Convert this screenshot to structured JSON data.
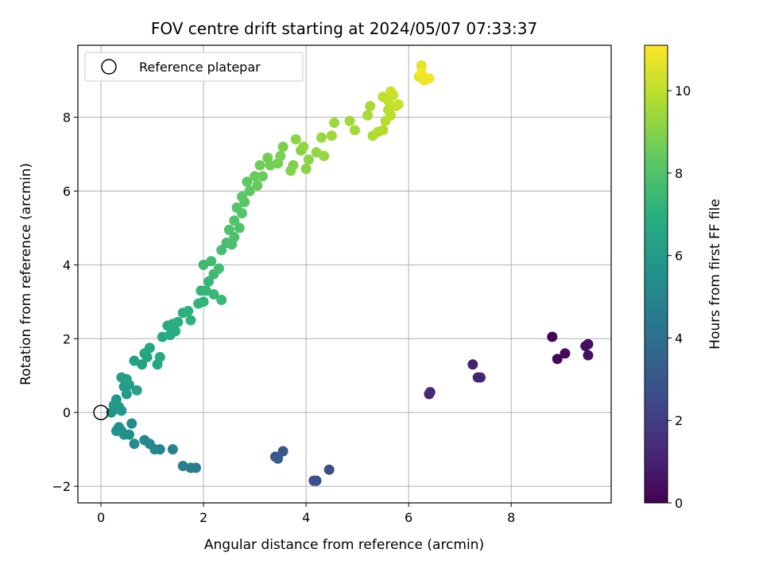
{
  "chart_data": {
    "type": "scatter",
    "title": "FOV centre drift starting at 2024/05/07 07:33:37",
    "xlabel": "Angular distance from reference (arcmin)",
    "ylabel": "Rotation from reference (arcmin)",
    "xlim": [
      -0.45,
      9.95
    ],
    "ylim": [
      -2.45,
      9.95
    ],
    "xticks": [
      0,
      2,
      4,
      6,
      8
    ],
    "yticks": [
      -2,
      0,
      2,
      4,
      6,
      8
    ],
    "xtick_labels": [
      "0",
      "2",
      "4",
      "6",
      "8"
    ],
    "ytick_labels": [
      "−2",
      "0",
      "2",
      "4",
      "6",
      "8"
    ],
    "grid": true,
    "legend": {
      "placement": "top-left",
      "label": "Reference platepar"
    },
    "reference_point": {
      "x": 0,
      "y": 0
    },
    "colorbar": {
      "label": "Hours from first FF file",
      "range": [
        0,
        11.1
      ],
      "ticks": [
        0,
        2,
        4,
        6,
        8,
        10
      ],
      "tick_labels": [
        "0",
        "2",
        "4",
        "6",
        "8",
        "10"
      ],
      "colormap": "viridis"
    },
    "points": [
      [
        8.8,
        2.05,
        0.1
      ],
      [
        8.9,
        1.45,
        0.2
      ],
      [
        9.05,
        1.6,
        0.3
      ],
      [
        9.45,
        1.8,
        0.4
      ],
      [
        9.5,
        1.85,
        0.45
      ],
      [
        9.5,
        1.55,
        0.5
      ],
      [
        7.25,
        1.3,
        1.0
      ],
      [
        7.35,
        0.95,
        1.05
      ],
      [
        7.4,
        0.95,
        1.1
      ],
      [
        6.4,
        0.5,
        1.2
      ],
      [
        6.42,
        0.55,
        1.25
      ],
      [
        4.45,
        -1.55,
        2.6
      ],
      [
        4.2,
        -1.85,
        2.7
      ],
      [
        4.15,
        -1.85,
        2.75
      ],
      [
        3.55,
        -1.05,
        3.0
      ],
      [
        3.4,
        -1.2,
        3.1
      ],
      [
        3.45,
        -1.25,
        3.15
      ],
      [
        1.85,
        -1.5,
        4.5
      ],
      [
        1.75,
        -1.5,
        4.6
      ],
      [
        1.6,
        -1.45,
        4.7
      ],
      [
        1.4,
        -1.0,
        4.9
      ],
      [
        1.15,
        -1.0,
        5.0
      ],
      [
        1.05,
        -1.0,
        5.05
      ],
      [
        0.95,
        -0.85,
        5.15
      ],
      [
        0.85,
        -0.75,
        5.2
      ],
      [
        0.65,
        -0.85,
        5.35
      ],
      [
        0.6,
        -0.3,
        5.4
      ],
      [
        0.55,
        -0.6,
        5.45
      ],
      [
        0.45,
        -0.6,
        5.5
      ],
      [
        0.4,
        -0.5,
        5.55
      ],
      [
        0.3,
        -0.5,
        5.6
      ],
      [
        0.35,
        -0.4,
        5.62
      ],
      [
        0.2,
        0.0,
        5.7
      ],
      [
        0.3,
        0.1,
        5.75
      ],
      [
        0.35,
        0.15,
        5.8
      ],
      [
        0.4,
        0.05,
        5.85
      ],
      [
        0.25,
        0.2,
        5.9
      ],
      [
        0.3,
        0.35,
        5.95
      ],
      [
        0.5,
        0.5,
        6.0
      ],
      [
        0.45,
        0.7,
        6.05
      ],
      [
        0.55,
        0.75,
        6.1
      ],
      [
        0.4,
        0.95,
        6.15
      ],
      [
        0.5,
        0.9,
        6.2
      ],
      [
        0.7,
        0.6,
        6.25
      ],
      [
        0.65,
        1.4,
        6.35
      ],
      [
        0.8,
        1.3,
        6.4
      ],
      [
        0.85,
        1.6,
        6.45
      ],
      [
        0.9,
        1.5,
        6.5
      ],
      [
        0.95,
        1.75,
        6.55
      ],
      [
        1.1,
        1.3,
        6.6
      ],
      [
        1.15,
        1.5,
        6.65
      ],
      [
        1.2,
        2.05,
        6.7
      ],
      [
        1.35,
        2.1,
        6.75
      ],
      [
        1.3,
        2.35,
        6.8
      ],
      [
        1.45,
        2.2,
        6.85
      ],
      [
        1.4,
        2.4,
        6.9
      ],
      [
        1.5,
        2.45,
        6.95
      ],
      [
        1.6,
        2.7,
        7.0
      ],
      [
        1.7,
        2.75,
        7.05
      ],
      [
        1.75,
        2.5,
        7.1
      ],
      [
        1.9,
        2.95,
        7.15
      ],
      [
        2.0,
        3.0,
        7.2
      ],
      [
        1.95,
        3.3,
        7.25
      ],
      [
        2.05,
        3.3,
        7.3
      ],
      [
        2.1,
        3.55,
        7.35
      ],
      [
        2.2,
        3.2,
        7.4
      ],
      [
        2.35,
        3.05,
        7.45
      ],
      [
        2.2,
        3.75,
        7.5
      ],
      [
        2.0,
        4.0,
        7.55
      ],
      [
        2.15,
        4.1,
        7.6
      ],
      [
        2.3,
        3.9,
        7.65
      ],
      [
        2.35,
        4.4,
        7.7
      ],
      [
        2.45,
        4.6,
        7.75
      ],
      [
        2.55,
        4.55,
        7.8
      ],
      [
        2.6,
        4.75,
        7.85
      ],
      [
        2.5,
        4.95,
        7.9
      ],
      [
        2.7,
        5.0,
        7.95
      ],
      [
        2.6,
        5.2,
        8.0
      ],
      [
        2.75,
        5.4,
        8.05
      ],
      [
        2.65,
        5.55,
        8.1
      ],
      [
        2.8,
        5.7,
        8.15
      ],
      [
        2.75,
        5.85,
        8.2
      ],
      [
        2.9,
        6.0,
        8.25
      ],
      [
        2.85,
        6.25,
        8.3
      ],
      [
        3.05,
        6.15,
        8.4
      ],
      [
        3.0,
        6.4,
        8.45
      ],
      [
        3.15,
        6.4,
        8.5
      ],
      [
        3.1,
        6.7,
        8.6
      ],
      [
        3.25,
        6.9,
        8.65
      ],
      [
        3.3,
        6.7,
        8.7
      ],
      [
        3.45,
        6.75,
        8.75
      ],
      [
        3.5,
        6.95,
        8.8
      ],
      [
        3.55,
        7.2,
        8.85
      ],
      [
        3.75,
        6.7,
        8.9
      ],
      [
        3.7,
        6.55,
        8.95
      ],
      [
        3.9,
        7.1,
        9.0
      ],
      [
        4.0,
        6.6,
        9.05
      ],
      [
        4.05,
        6.85,
        9.1
      ],
      [
        3.8,
        7.4,
        9.15
      ],
      [
        3.95,
        7.2,
        9.2
      ],
      [
        4.2,
        7.05,
        9.25
      ],
      [
        4.35,
        6.95,
        9.3
      ],
      [
        4.3,
        7.45,
        9.35
      ],
      [
        4.5,
        7.5,
        9.4
      ],
      [
        4.55,
        7.85,
        9.45
      ],
      [
        4.85,
        7.9,
        9.5
      ],
      [
        4.95,
        7.65,
        9.55
      ],
      [
        5.2,
        8.05,
        9.6
      ],
      [
        5.25,
        8.3,
        9.65
      ],
      [
        5.3,
        7.5,
        9.7
      ],
      [
        5.4,
        7.6,
        9.75
      ],
      [
        5.5,
        7.65,
        9.8
      ],
      [
        5.55,
        7.9,
        9.85
      ],
      [
        5.6,
        8.2,
        9.9
      ],
      [
        5.65,
        8.05,
        9.95
      ],
      [
        5.5,
        8.55,
        10.0
      ],
      [
        5.6,
        8.45,
        10.05
      ],
      [
        5.7,
        8.6,
        10.1
      ],
      [
        5.75,
        8.3,
        10.15
      ],
      [
        5.8,
        8.35,
        10.2
      ],
      [
        5.65,
        8.7,
        10.25
      ],
      [
        6.25,
        9.4,
        10.6
      ],
      [
        6.2,
        9.1,
        10.7
      ],
      [
        6.3,
        9.0,
        10.8
      ],
      [
        6.4,
        9.05,
        10.9
      ],
      [
        6.25,
        9.2,
        11.0
      ]
    ]
  }
}
